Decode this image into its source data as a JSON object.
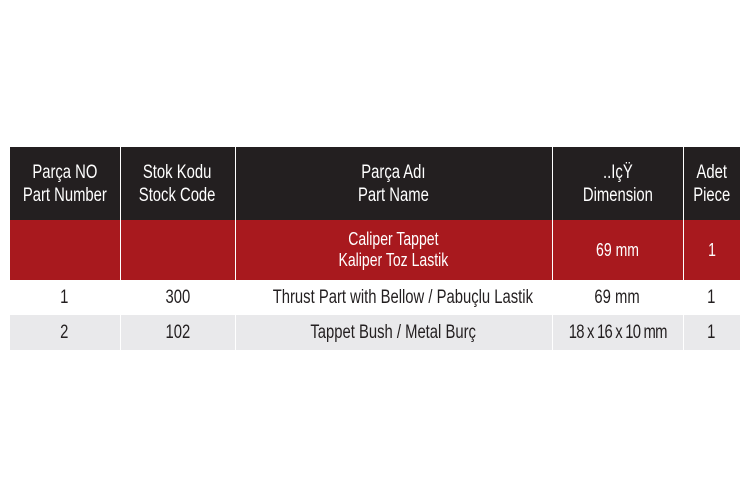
{
  "table": {
    "headers": [
      {
        "tr": "Parça NO",
        "en": "Part Number"
      },
      {
        "tr": "Stok Kodu",
        "en": "Stock Code"
      },
      {
        "tr": "Parça Adı",
        "en": "Part Name"
      },
      {
        "tr": "..IçŸ",
        "en": "Dimension"
      },
      {
        "tr": "Adet",
        "en": "Piece"
      }
    ],
    "title_row": {
      "part_no": "",
      "stock_code": "",
      "name_en": "Caliper Tappet",
      "name_tr": "Kaliper Toz Lastik",
      "dimension": "69 mm",
      "piece": "1"
    },
    "rows": [
      {
        "part_no": "1",
        "stock_code": "300",
        "name": "Thrust Part with Bellow / Pabuçlu Lastik",
        "dimension": "69 mm",
        "piece": "1"
      },
      {
        "part_no": "2",
        "stock_code": "102",
        "name": "Tappet Bush / Metal Burç",
        "dimension": "18 x 16 x 10 mm",
        "piece": "1"
      }
    ],
    "colors": {
      "header_bg": "#231f20",
      "title_row_bg": "#a8191e",
      "alt_row_bg": "#e9e9eb"
    }
  }
}
